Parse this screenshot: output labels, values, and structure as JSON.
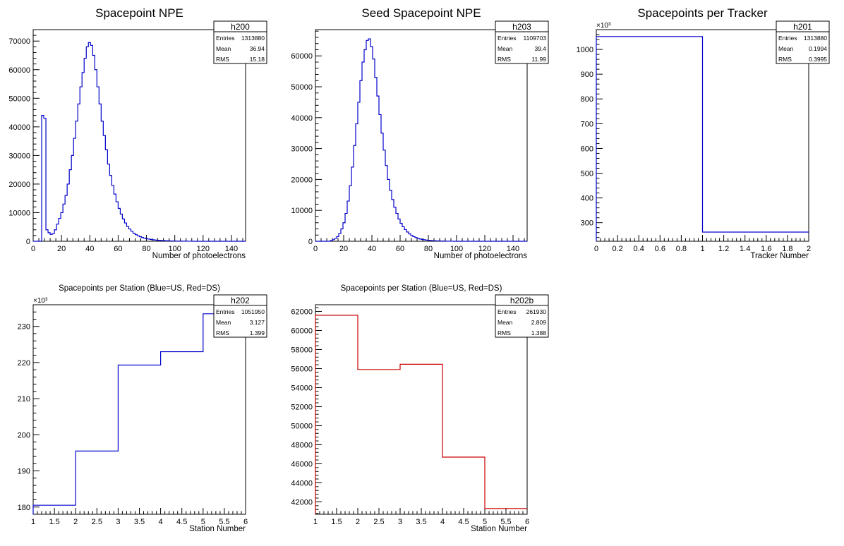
{
  "chart_data": [
    {
      "type": "histogram",
      "title": "Spacepoint NPE",
      "xlabel": "Number of photoelectrons",
      "ylabel": "",
      "xlim": [
        0,
        150
      ],
      "ylim": [
        0,
        74000
      ],
      "x_ticks": [
        "0",
        "20",
        "40",
        "60",
        "80",
        "100",
        "120",
        "140"
      ],
      "y_ticks": [
        "0",
        "10000",
        "20000",
        "30000",
        "40000",
        "50000",
        "60000",
        "70000"
      ],
      "y_multiplier": "",
      "line_color": "#0000cc",
      "stats": {
        "name": "h200",
        "entries_label": "Entries",
        "entries": "1313880",
        "mean_label": "Mean",
        "mean": "36.94",
        "rms_label": "RMS",
        "rms": "15.18"
      },
      "bin_width": 1.5,
      "values": [
        0,
        0,
        0,
        0,
        44000,
        43000,
        4000,
        3000,
        2400,
        2700,
        4000,
        6000,
        8000,
        10000,
        13000,
        16000,
        20000,
        25000,
        30000,
        36000,
        42000,
        48000,
        54000,
        59000,
        64000,
        68000,
        69500,
        68500,
        65000,
        60000,
        54000,
        48000,
        42000,
        37000,
        32000,
        27000,
        23000,
        19500,
        16500,
        13800,
        11500,
        9500,
        7800,
        6400,
        5200,
        4300,
        3500,
        2800,
        2300,
        1900,
        1600,
        1300,
        1100,
        900,
        750,
        620,
        520,
        430,
        360,
        300,
        250,
        210,
        180,
        150,
        130,
        110,
        100,
        80,
        70,
        60,
        50,
        40,
        30,
        20,
        10,
        0,
        0,
        0,
        0,
        0,
        0,
        0,
        0,
        0,
        0,
        0,
        0,
        0,
        0,
        0,
        0,
        0,
        0,
        0,
        0,
        0,
        0,
        0,
        0,
        0
      ]
    },
    {
      "type": "histogram",
      "title": "Seed Spacepoint NPE",
      "xlabel": "Number of photoelectrons",
      "ylabel": "",
      "xlim": [
        0,
        150
      ],
      "ylim": [
        0,
        68500
      ],
      "x_ticks": [
        "0",
        "20",
        "40",
        "60",
        "80",
        "100",
        "120",
        "140"
      ],
      "y_ticks": [
        "0",
        "10000",
        "20000",
        "30000",
        "40000",
        "50000",
        "60000"
      ],
      "y_multiplier": "",
      "line_color": "#0000cc",
      "stats": {
        "name": "h203",
        "entries_label": "Entries",
        "entries": "1109703",
        "mean_label": "Mean",
        "mean": "39.4",
        "rms_label": "RMS",
        "rms": "11.99"
      },
      "bin_width": 1.5,
      "values": [
        0,
        0,
        0,
        0,
        0,
        0,
        0,
        200,
        500,
        900,
        1500,
        2500,
        4000,
        6000,
        9000,
        13000,
        18000,
        24000,
        31000,
        38000,
        45000,
        52000,
        58000,
        62000,
        65000,
        65500,
        63000,
        59000,
        53000,
        47000,
        41000,
        35000,
        29500,
        24500,
        20000,
        16500,
        13500,
        11000,
        9000,
        7200,
        5800,
        4700,
        3800,
        3000,
        2400,
        1900,
        1500,
        1200,
        950,
        750,
        600,
        480,
        380,
        300,
        240,
        190,
        150,
        120,
        100,
        80,
        60,
        40,
        30,
        20,
        10,
        0,
        0,
        0,
        0,
        0,
        0,
        0,
        0,
        0,
        0,
        0,
        0,
        0,
        0,
        0,
        0,
        0,
        0,
        0,
        0,
        0,
        0,
        0,
        0,
        0,
        0,
        0,
        0,
        0,
        0,
        0,
        0,
        0,
        0,
        0
      ]
    },
    {
      "type": "histogram",
      "title": "Spacepoints per Tracker",
      "xlabel": "Tracker Number",
      "ylabel": "",
      "xlim": [
        0,
        2
      ],
      "ylim": [
        225,
        1080
      ],
      "x_ticks": [
        "0",
        "0.2",
        "0.4",
        "0.6",
        "0.8",
        "1",
        "1.2",
        "1.4",
        "1.6",
        "1.8",
        "2"
      ],
      "y_ticks": [
        "300",
        "400",
        "500",
        "600",
        "700",
        "800",
        "900",
        "1000"
      ],
      "y_multiplier": "×10³",
      "line_color": "#0000cc",
      "stats": {
        "name": "h201",
        "entries_label": "Entries",
        "entries": "1313880",
        "mean_label": "Mean",
        "mean": "0.1994",
        "rms_label": "RMS",
        "rms": "0.3995"
      },
      "bin_edges": [
        0,
        1,
        2
      ],
      "values": [
        1052,
        262
      ]
    },
    {
      "type": "histogram",
      "title": "Spacepoints per Station (Blue=US, Red=DS)",
      "xlabel": "Station Number",
      "ylabel": "",
      "xlim": [
        1,
        6
      ],
      "ylim": [
        178,
        236
      ],
      "x_ticks": [
        "1",
        "1.5",
        "2",
        "2.5",
        "3",
        "3.5",
        "4",
        "4.5",
        "5",
        "5.5",
        "6"
      ],
      "y_ticks": [
        "180",
        "190",
        "200",
        "210",
        "220",
        "230"
      ],
      "y_multiplier": "×10³",
      "line_color": "#0000cc",
      "stats": {
        "name": "h202",
        "entries_label": "Entries",
        "entries": "1051950",
        "mean_label": "Mean",
        "mean": "3.127",
        "rms_label": "RMS",
        "rms": "1.399"
      },
      "bin_edges": [
        1,
        2,
        3,
        4,
        5,
        6
      ],
      "values": [
        180.5,
        195.5,
        219.3,
        223.0,
        233.5
      ]
    },
    {
      "type": "histogram",
      "title": "Spacepoints per Station (Blue=US, Red=DS)",
      "xlabel": "Station Number",
      "ylabel": "",
      "xlim": [
        1,
        6
      ],
      "ylim": [
        40700,
        62700
      ],
      "x_ticks": [
        "1",
        "1.5",
        "2",
        "2.5",
        "3",
        "3.5",
        "4",
        "4.5",
        "5",
        "5.5",
        "6"
      ],
      "y_ticks": [
        "42000",
        "44000",
        "46000",
        "48000",
        "50000",
        "52000",
        "54000",
        "56000",
        "58000",
        "60000",
        "62000"
      ],
      "y_multiplier": "",
      "line_color": "#cc0000",
      "stats": {
        "name": "h202b",
        "entries_label": "Entries",
        "entries": "261930",
        "mean_label": "Mean",
        "mean": "2.809",
        "rms_label": "RMS",
        "rms": "1.388"
      },
      "bin_edges": [
        1,
        2,
        3,
        4,
        5,
        6
      ],
      "values": [
        61600,
        55900,
        56450,
        46700,
        41300
      ]
    }
  ]
}
